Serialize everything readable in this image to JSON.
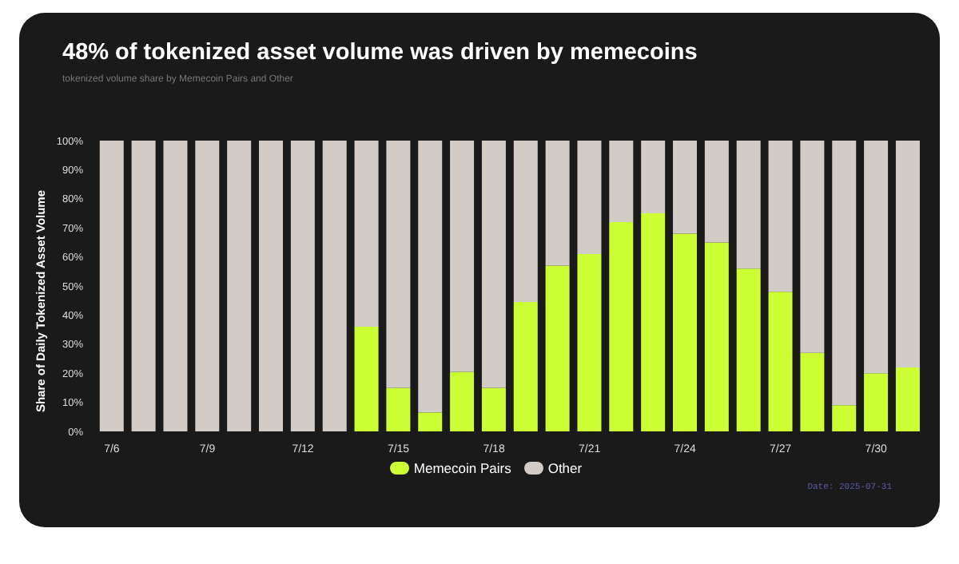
{
  "chart_data": {
    "type": "bar",
    "title": "48% of tokenized asset volume was driven by memecoins",
    "subtitle": "tokenized volume share by Memecoin Pairs and Other",
    "ylabel": "Share of Daily Tokenized Asset Volume",
    "annotations": [
      "Date: 2025-07-31"
    ],
    "categories": [
      "7/6",
      null,
      null,
      "7/9",
      null,
      null,
      "7/12",
      null,
      null,
      "7/15",
      null,
      null,
      "7/18",
      null,
      null,
      "7/21",
      null,
      null,
      "7/24",
      null,
      null,
      "7/27",
      null,
      null,
      "7/30",
      null
    ],
    "stacked": true,
    "series": [
      {
        "name": "Memecoin Pairs",
        "color": "#ccff33",
        "values": [
          0,
          0,
          0,
          0,
          0,
          0,
          0,
          0,
          36,
          15,
          6.5,
          20.5,
          15,
          44.5,
          57,
          61,
          72,
          75,
          68,
          65,
          56,
          48,
          27,
          9,
          20,
          22
        ]
      },
      {
        "name": "Other",
        "color": "#d3ccc6",
        "values": [
          100,
          100,
          100,
          100,
          100,
          100,
          100,
          100,
          64,
          85,
          93.5,
          79.5,
          85,
          55.5,
          43,
          39,
          28,
          25,
          32,
          35,
          44,
          52,
          73,
          91,
          80,
          78
        ]
      }
    ],
    "ylim": [
      0,
      100
    ],
    "yticks": [
      {
        "value": 0,
        "label": "0%"
      },
      {
        "value": 10,
        "label": "10%"
      },
      {
        "value": 20,
        "label": "20%"
      },
      {
        "value": 30,
        "label": "30%"
      },
      {
        "value": 40,
        "label": "40%"
      },
      {
        "value": 50,
        "label": "50%"
      },
      {
        "value": 60,
        "label": "60%"
      },
      {
        "value": 70,
        "label": "70%"
      },
      {
        "value": 80,
        "label": "80%"
      },
      {
        "value": 90,
        "label": "90%"
      },
      {
        "value": 100,
        "label": "100%"
      }
    ],
    "grid": false,
    "legend": "bottom"
  }
}
